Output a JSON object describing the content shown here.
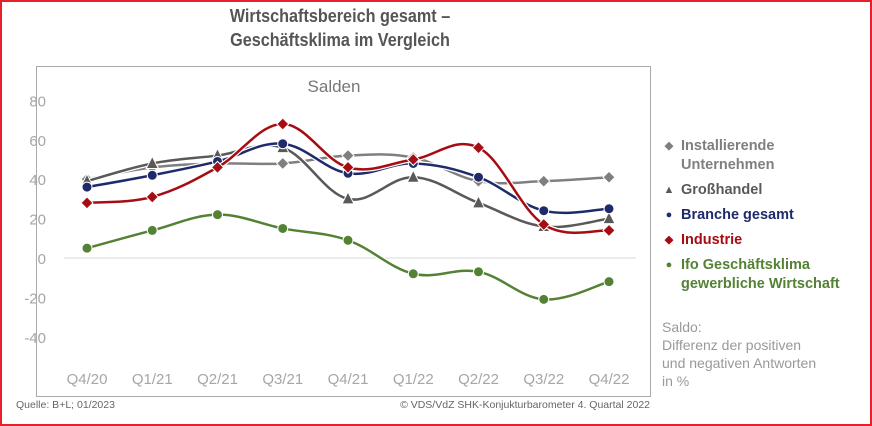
{
  "title_line1": "Wirtschaftsbereich gesamt –",
  "title_line2": "Geschäftsklima im Vergleich",
  "source": "Quelle: B+L; 01/2023",
  "copyright": "© VDS/VdZ SHK-Konjukturbarometer 4. Quartal 2022",
  "note": [
    "Saldo:",
    "Differenz der positiven",
    "und negativen Antworten",
    "in %"
  ],
  "chart_data": {
    "type": "line",
    "title": "Wirtschaftsbereich gesamt – Geschäftsklima im Vergleich",
    "subtitle": "Salden",
    "xlabel": "",
    "ylabel": "",
    "categories": [
      "Q4/20",
      "Q1/21",
      "Q2/21",
      "Q3/21",
      "Q4/21",
      "Q1/22",
      "Q2/22",
      "Q3/22",
      "Q4/22"
    ],
    "yticks": [
      80,
      60,
      40,
      20,
      0,
      -20,
      -40
    ],
    "ylim": [
      -40,
      80
    ],
    "grid": false,
    "legend_position": "right",
    "series": [
      {
        "name": "Installierende Unternehmen",
        "legend_lines": [
          "Installierende",
          "Unternehmen"
        ],
        "color": "#7f7f7f",
        "marker": "diamond",
        "values": [
          40,
          46,
          48,
          48,
          52,
          51,
          39,
          39,
          41
        ]
      },
      {
        "name": "Großhandel",
        "legend_lines": [
          "Großhandel"
        ],
        "color": "#595959",
        "marker": "triangle",
        "values": [
          39,
          48,
          52,
          56,
          30,
          41,
          28,
          16,
          20
        ]
      },
      {
        "name": "Branche gesamt",
        "legend_lines": [
          "Branche gesamt"
        ],
        "color": "#1f2a6b",
        "marker": "circle",
        "values": [
          36,
          42,
          49,
          58,
          43,
          48,
          41,
          24,
          25
        ]
      },
      {
        "name": "Industrie",
        "legend_lines": [
          "Industrie"
        ],
        "color": "#a50d12",
        "marker": "diamond",
        "values": [
          28,
          31,
          46,
          68,
          46,
          50,
          56,
          17,
          14
        ]
      },
      {
        "name": "Ifo Geschäftsklima gewerbliche Wirtschaft",
        "legend_lines": [
          "Ifo Geschäftsklima",
          "gewerbliche Wirtschaft"
        ],
        "color": "#548235",
        "marker": "circle",
        "values": [
          5,
          14,
          22,
          15,
          9,
          -8,
          -7,
          -21,
          -12
        ]
      }
    ]
  }
}
